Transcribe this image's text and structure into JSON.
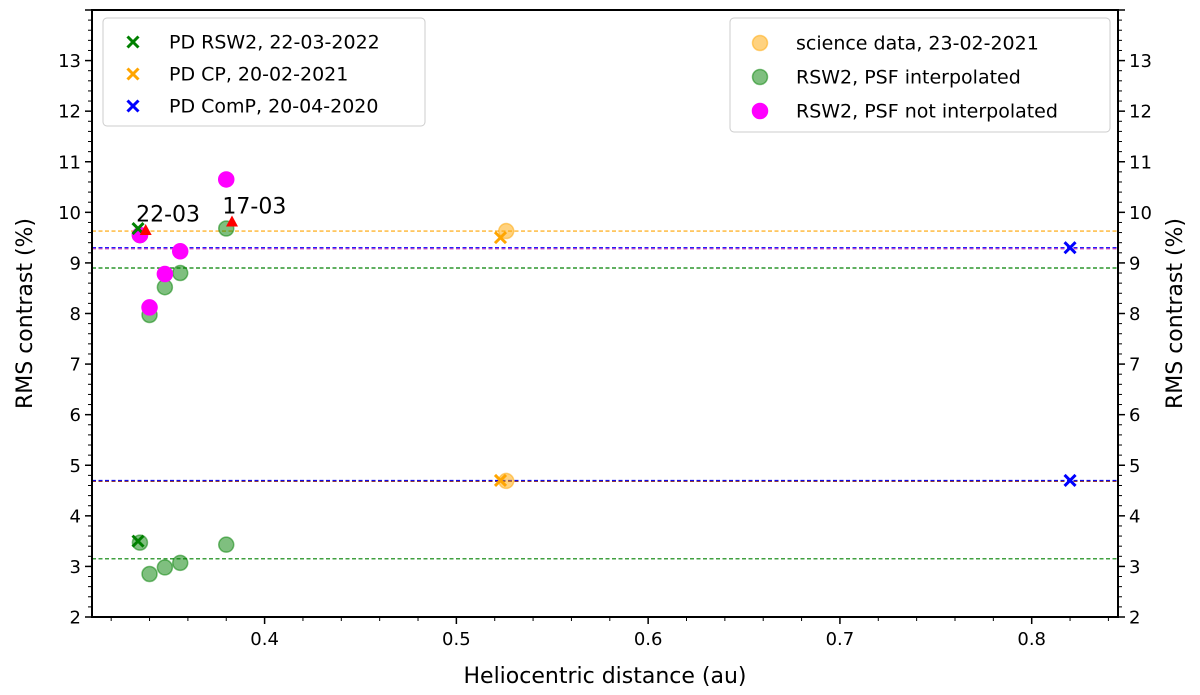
{
  "chart_data": {
    "type": "scatter",
    "xlabel": "Heliocentric distance (au)",
    "ylabel": "RMS contrast (%)",
    "ylabel_right": "RMS contrast (%)",
    "xlim": [
      0.31,
      0.845
    ],
    "ylim": [
      2,
      14
    ],
    "xticks": [
      0.4,
      0.5,
      0.6,
      0.7,
      0.8
    ],
    "xtick_labels": [
      "0.4",
      "0.5",
      "0.6",
      "0.7",
      "0.8"
    ],
    "yticks": [
      2,
      3,
      4,
      5,
      6,
      7,
      8,
      9,
      10,
      11,
      12,
      13
    ],
    "ytick_labels": [
      "2",
      "3",
      "4",
      "5",
      "6",
      "7",
      "8",
      "9",
      "10",
      "11",
      "12",
      "13"
    ],
    "grid": false,
    "legends": [
      {
        "placement": "top-left",
        "entries": [
          {
            "label": "PD RSW2, 22-03-2022",
            "marker": "x",
            "color": "#008000"
          },
          {
            "label": "PD CP, 20-02-2021",
            "marker": "x",
            "color": "#ffa500"
          },
          {
            "label": "PD ComP, 20-04-2020",
            "marker": "x",
            "color": "#0000ff"
          }
        ]
      },
      {
        "placement": "top-right",
        "entries": [
          {
            "label": "science data, 23-02-2021",
            "marker": "o",
            "color": "#ffa500",
            "alpha": 0.5
          },
          {
            "label": "RSW2, PSF interpolated",
            "marker": "o",
            "color": "#008000",
            "alpha": 0.5
          },
          {
            "label": "RSW2, PSF not interpolated",
            "marker": "o",
            "color": "#ff00ff",
            "alpha": 1
          }
        ]
      }
    ],
    "series": [
      {
        "name": "RSW2, PSF interpolated",
        "marker": "o",
        "color": "#008000",
        "alpha": 0.5,
        "points": [
          [
            0.335,
            9.55
          ],
          [
            0.34,
            7.97
          ],
          [
            0.348,
            8.52
          ],
          [
            0.356,
            8.8
          ],
          [
            0.38,
            9.68
          ],
          [
            0.335,
            3.47
          ],
          [
            0.34,
            2.85
          ],
          [
            0.348,
            2.98
          ],
          [
            0.356,
            3.07
          ],
          [
            0.38,
            3.43
          ]
        ]
      },
      {
        "name": "RSW2, PSF not interpolated",
        "marker": "o",
        "color": "#ff00ff",
        "alpha": 1,
        "points": [
          [
            0.335,
            9.55
          ],
          [
            0.34,
            8.12
          ],
          [
            0.348,
            8.78
          ],
          [
            0.356,
            9.23
          ],
          [
            0.38,
            10.65
          ]
        ]
      },
      {
        "name": "science data, 23-02-2021",
        "marker": "o",
        "color": "#ffa500",
        "alpha": 0.5,
        "points": [
          [
            0.526,
            9.63
          ],
          [
            0.526,
            4.69
          ]
        ]
      },
      {
        "name": "PD RSW2, 22-03-2022",
        "marker": "x",
        "color": "#008000",
        "points": [
          [
            0.334,
            9.68
          ],
          [
            0.334,
            3.5
          ]
        ]
      },
      {
        "name": "PD CP, 20-02-2021",
        "marker": "x",
        "color": "#ffa500",
        "points": [
          [
            0.523,
            9.5
          ],
          [
            0.523,
            4.7
          ]
        ]
      },
      {
        "name": "PD ComP, 20-04-2020",
        "marker": "x",
        "color": "#0000ff",
        "points": [
          [
            0.82,
            9.3
          ],
          [
            0.82,
            4.7
          ]
        ]
      },
      {
        "name": "markers",
        "marker": "^",
        "color": "#ff0000",
        "points": [
          [
            0.338,
            9.65
          ],
          [
            0.383,
            9.82
          ]
        ]
      }
    ],
    "hlines": [
      {
        "y": 9.63,
        "color": "#ffa500"
      },
      {
        "y": 9.3,
        "color": "#0000ff"
      },
      {
        "y": 9.28,
        "color": "#bf40bf"
      },
      {
        "y": 8.9,
        "color": "#008000"
      },
      {
        "y": 4.7,
        "color": "#0000ff"
      },
      {
        "y": 4.68,
        "color": "#8b3a3a"
      },
      {
        "y": 3.15,
        "color": "#008000"
      }
    ],
    "annotations": [
      {
        "text": "22-03",
        "x": 0.333,
        "y": 9.82
      },
      {
        "text": "17-03",
        "x": 0.378,
        "y": 9.98
      }
    ]
  }
}
